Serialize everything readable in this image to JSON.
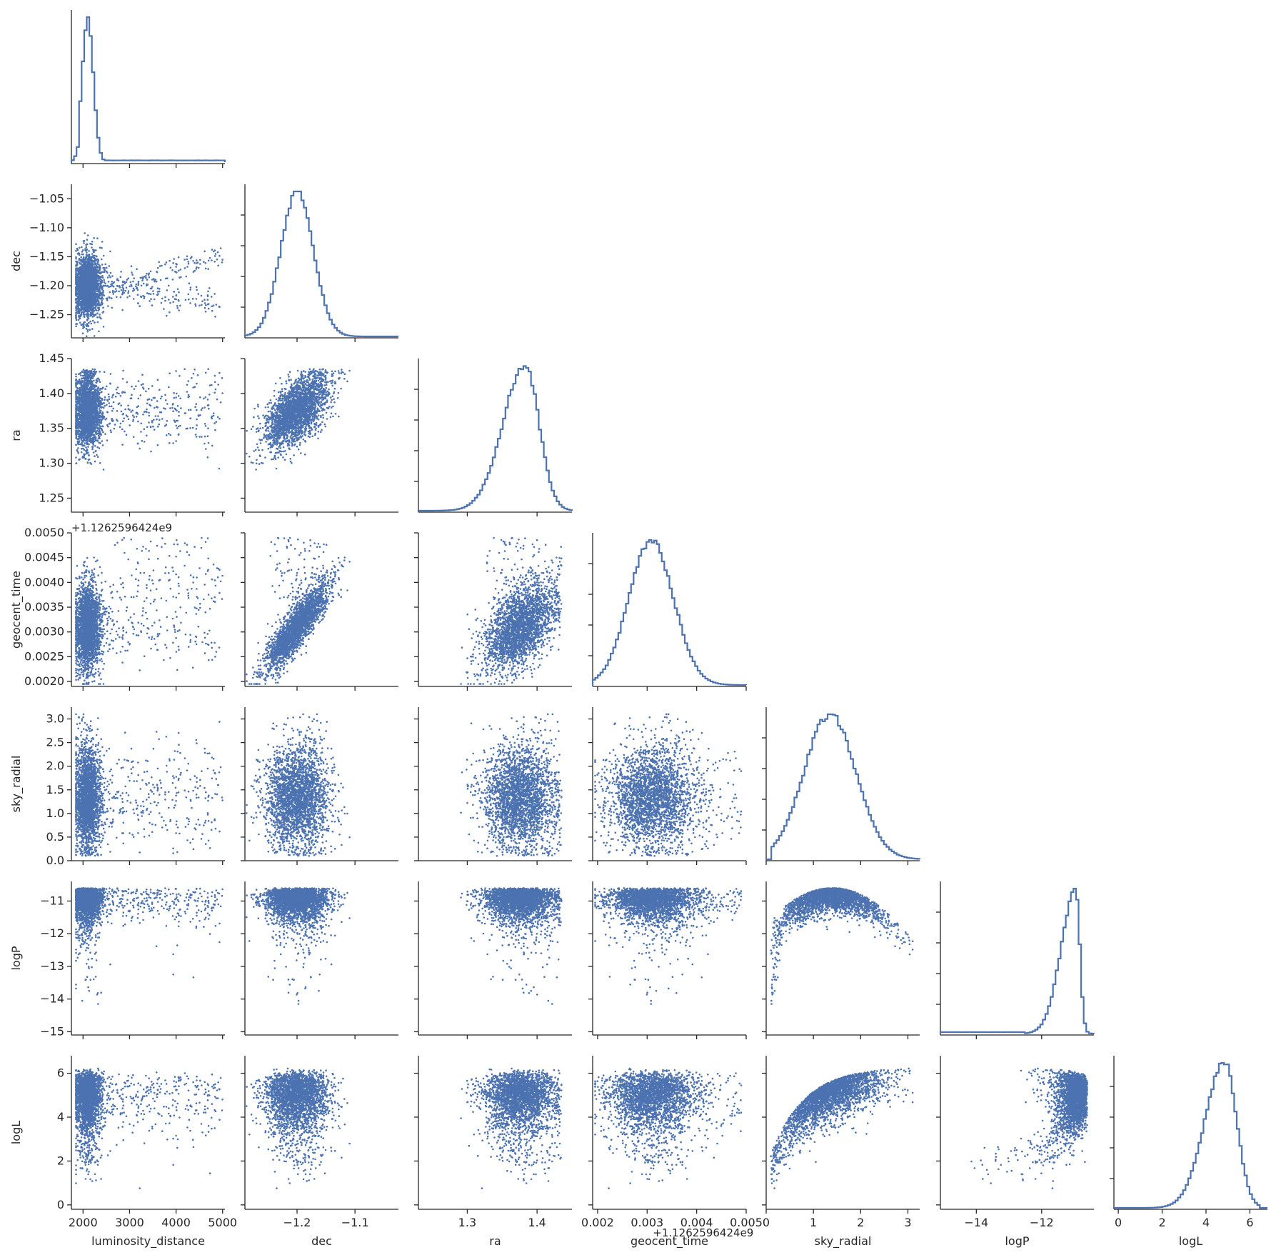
{
  "chart_data": {
    "type": "scatter",
    "kind": "corner-plot",
    "color": "#4c72b0",
    "variables": [
      {
        "name": "luminosity_distance",
        "label": "luminosity_distance",
        "ylabel": "",
        "range": [
          1750,
          5050
        ],
        "ticks": [
          2000,
          3000,
          4000,
          5000
        ],
        "tick_labels": [
          "2000",
          "3000",
          "4000",
          "5000"
        ],
        "offset_label": ""
      },
      {
        "name": "dec",
        "label": "dec",
        "ylabel": "dec",
        "range": [
          -1.29,
          -1.025
        ],
        "ticks": [
          -1.2,
          -1.1
        ],
        "tick_labels": [
          "−1.2",
          "−1.1"
        ],
        "yticks": [
          -1.05,
          -1.1,
          -1.15,
          -1.2,
          -1.25
        ],
        "ytick_labels": [
          "−1.05",
          "−1.10",
          "−1.15",
          "−1.20",
          "−1.25"
        ],
        "offset_label": ""
      },
      {
        "name": "ra",
        "label": "ra",
        "ylabel": "ra",
        "range": [
          1.23,
          1.45
        ],
        "ticks": [
          1.3,
          1.4
        ],
        "tick_labels": [
          "1.3",
          "1.4"
        ],
        "yticks": [
          1.25,
          1.3,
          1.35,
          1.4,
          1.45
        ],
        "ytick_labels": [
          "1.25",
          "1.30",
          "1.35",
          "1.40",
          "1.45"
        ],
        "offset_label": ""
      },
      {
        "name": "geocent_time",
        "label": "geocent_time",
        "ylabel": "geocent_time",
        "range": [
          0.0019,
          0.005
        ],
        "ticks": [
          0.002,
          0.003,
          0.004,
          0.005
        ],
        "tick_labels": [
          "0.002",
          "0.003",
          "0.004",
          "0.005"
        ],
        "yticks": [
          0.002,
          0.0025,
          0.003,
          0.0035,
          0.004,
          0.0045,
          0.005
        ],
        "ytick_labels": [
          "0.0020",
          "0.0025",
          "0.0030",
          "0.0035",
          "0.0040",
          "0.0045",
          "0.0050"
        ],
        "offset_label": "+1.1262596424e9"
      },
      {
        "name": "sky_radial",
        "label": "sky_radial",
        "ylabel": "sky_radial",
        "range": [
          0,
          3.25
        ],
        "ticks": [
          0,
          1,
          2,
          3
        ],
        "tick_labels": [
          "0",
          "1",
          "2",
          "3"
        ],
        "yticks": [
          0.0,
          0.5,
          1.0,
          1.5,
          2.0,
          2.5,
          3.0
        ],
        "ytick_labels": [
          "0.0",
          "0.5",
          "1.0",
          "1.5",
          "2.0",
          "2.5",
          "3.0"
        ],
        "offset_label": ""
      },
      {
        "name": "logP",
        "label": "logP",
        "ylabel": "logP",
        "range": [
          -15.1,
          -10.4
        ],
        "ticks": [
          -14,
          -12
        ],
        "tick_labels": [
          "−14",
          "−12"
        ],
        "yticks": [
          -11,
          -12,
          -13,
          -14,
          -15
        ],
        "ytick_labels": [
          "−11",
          "−12",
          "−13",
          "−14",
          "−15"
        ],
        "offset_label": ""
      },
      {
        "name": "logL",
        "label": "logL",
        "ylabel": "logL",
        "range": [
          -0.2,
          6.8
        ],
        "ticks": [
          0,
          2,
          4,
          6
        ],
        "tick_labels": [
          "0",
          "2",
          "4",
          "6"
        ],
        "yticks": [
          0,
          2,
          4,
          6
        ],
        "ytick_labels": [
          "0",
          "2",
          "4",
          "6"
        ],
        "offset_label": ""
      }
    ],
    "marginals": {
      "luminosity_distance": {
        "peak": 2100,
        "spread": 120,
        "tail": "long right tail to 5000"
      },
      "dec": {
        "peak": -1.2,
        "spread": 0.03
      },
      "ra": {
        "peak": 1.385,
        "spread": 0.03,
        "skew": "left"
      },
      "geocent_time": {
        "peak": 0.0031,
        "spread": 0.0005
      },
      "sky_radial": {
        "peak": 1.35,
        "spread": 0.5
      },
      "logP": {
        "peak": -10.9,
        "spread": 0.2,
        "skew": "left"
      },
      "logL": {
        "peak": 4.9,
        "spread": 0.8,
        "skew": "left"
      }
    },
    "pairwise_relations": [
      {
        "pair": [
          "dec",
          "ra"
        ],
        "relation": "positive correlation"
      },
      {
        "pair": [
          "dec",
          "geocent_time"
        ],
        "relation": "strong positive linear"
      },
      {
        "pair": [
          "ra",
          "geocent_time"
        ],
        "relation": "positive correlation"
      },
      {
        "pair": [
          "sky_radial",
          "logP"
        ],
        "relation": "arch, maximum near sky_radial 1.4 at logP -10.6"
      },
      {
        "pair": [
          "sky_radial",
          "logL"
        ],
        "relation": "rising curve, saturating near 6"
      },
      {
        "pair": [
          "logP",
          "logL"
        ],
        "relation": "positive correlation"
      }
    ],
    "grid": false,
    "legend": "none",
    "title": ""
  }
}
